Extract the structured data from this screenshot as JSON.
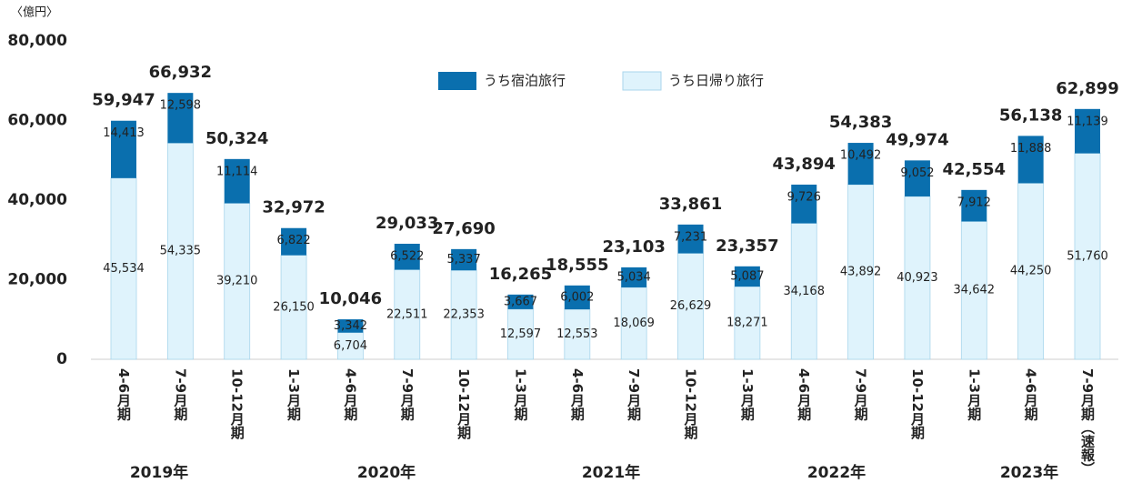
{
  "chart_data": {
    "type": "stacked_bar",
    "unit_label": "〈億円〉",
    "categories": [
      "4-6月期",
      "7-9月期",
      "10-12月期",
      "1-3月期",
      "4-6月期",
      "7-9月期",
      "10-12月期",
      "1-3月期",
      "4-6月期",
      "7-9月期",
      "10-12月期",
      "1-3月期",
      "4-6月期",
      "7-9月期",
      "10-12月期",
      "1-3月期",
      "4-6月期",
      "7-9月期（速報）"
    ],
    "year_labels": [
      "2019年",
      "2020年",
      "2021年",
      "2022年",
      "2023年"
    ],
    "series": [
      {
        "name": "うち日帰り旅行",
        "color": "#dff3fc",
        "values": [
          45534,
          54335,
          39210,
          26150,
          6704,
          22511,
          22353,
          12597,
          12553,
          18069,
          26629,
          18271,
          34168,
          43892,
          40923,
          34642,
          44250,
          51760
        ],
        "value_labels": [
          "45,534",
          "54,335",
          "39,210",
          "26,150",
          "6,704",
          "22,511",
          "22,353",
          "12,597",
          "12,553",
          "18,069",
          "26,629",
          "18,271",
          "34,168",
          "43,892",
          "40,923",
          "34,642",
          "44,250",
          "51,760"
        ]
      },
      {
        "name": "うち宿泊旅行",
        "color": "#0a6fae",
        "values": [
          14413,
          12598,
          11114,
          6822,
          3342,
          6522,
          5337,
          3667,
          6002,
          5034,
          7231,
          5087,
          9726,
          10492,
          9052,
          7912,
          11888,
          11139
        ],
        "value_labels": [
          "14,413",
          "12,598",
          "11,114",
          "6,822",
          "3,342",
          "6,522",
          "5,337",
          "3,667",
          "6,002",
          "5,034",
          "7,231",
          "5,087",
          "9,726",
          "10,492",
          "9,052",
          "7,912",
          "11,888",
          "11,139"
        ]
      }
    ],
    "total_labels": [
      "59,947",
      "66,932",
      "50,324",
      "32,972",
      "10,046",
      "29,033",
      "27,690",
      "16,265",
      "18,555",
      "23,103",
      "33,861",
      "23,357",
      "43,894",
      "54,383",
      "49,974",
      "42,554",
      "56,138",
      "62,899"
    ],
    "ylim": [
      0,
      80000
    ],
    "yticks": [
      {
        "value": 0,
        "label": "0"
      },
      {
        "value": 20000,
        "label": "20,000"
      },
      {
        "value": 40000,
        "label": "40,000"
      },
      {
        "value": 60000,
        "label": "60,000"
      },
      {
        "value": 80000,
        "label": "80,000"
      }
    ]
  }
}
